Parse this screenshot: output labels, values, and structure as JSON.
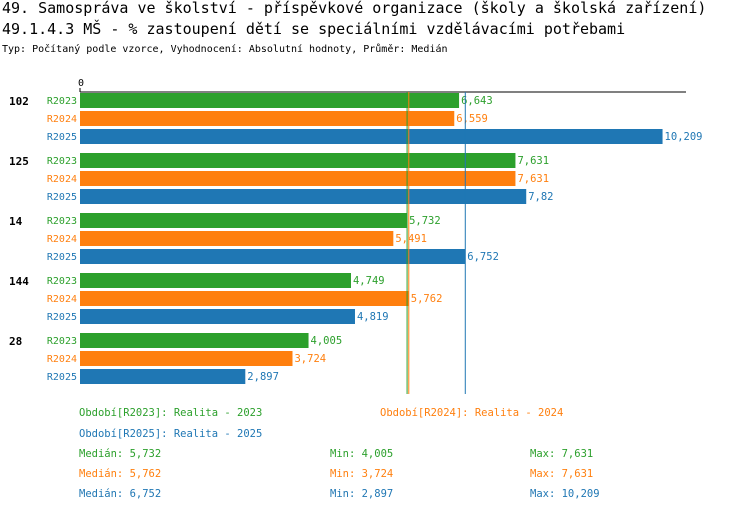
{
  "header": {
    "title": "49. Samospráva ve školství - příspěvkové organizace (školy a školská zařízení)",
    "subtitle": "49.1.4.3 MŠ - % zastoupení dětí se speciálními vzdělávacími potřebami",
    "meta": "Typ: Počítaný podle vzorce, Vyhodnocení: Absolutní hodnoty, Průměr: Medián"
  },
  "chart_data": {
    "type": "bar",
    "orientation": "horizontal",
    "x_axis_start_label": "0",
    "xlim": [
      0,
      10.62
    ],
    "categories": [
      "102",
      "125",
      "14",
      "144",
      "28"
    ],
    "series": [
      {
        "name": "R2023",
        "color": "#2ca02c",
        "values": [
          6.643,
          7.631,
          5.732,
          4.749,
          4.005
        ],
        "labels": [
          "6,643",
          "7,631",
          "5,732",
          "4,749",
          "4,005"
        ]
      },
      {
        "name": "R2024",
        "color": "#ff7f0e",
        "values": [
          6.559,
          7.631,
          5.491,
          5.762,
          3.724
        ],
        "labels": [
          "6,559",
          "7,631",
          "5,491",
          "5,762",
          "3,724"
        ]
      },
      {
        "name": "R2025",
        "color": "#1f77b4",
        "values": [
          10.209,
          7.82,
          6.752,
          4.819,
          2.897
        ],
        "labels": [
          "10,209",
          "7,82",
          "6,752",
          "4,819",
          "2,897"
        ]
      }
    ],
    "median_lines": [
      {
        "series": "R2023",
        "value": 5.732,
        "color": "#2ca02c"
      },
      {
        "series": "R2024",
        "value": 5.762,
        "color": "#ff7f0e"
      },
      {
        "series": "R2025",
        "value": 6.752,
        "color": "#1f77b4"
      }
    ]
  },
  "legend": {
    "r2023": {
      "text": "Období[R2023]: Realita - 2023",
      "color": "#2ca02c"
    },
    "r2024": {
      "text": "Období[R2024]: Realita - 2024",
      "color": "#ff7f0e"
    },
    "r2025": {
      "text": "Období[R2025]: Realita - 2025",
      "color": "#1f77b4"
    }
  },
  "stats": [
    {
      "median": "Medián: 5,732",
      "min": "Min: 4,005",
      "max": "Max: 7,631",
      "color": "#2ca02c"
    },
    {
      "median": "Medián: 5,762",
      "min": "Min: 3,724",
      "max": "Max: 7,631",
      "color": "#ff7f0e"
    },
    {
      "median": "Medián: 6,752",
      "min": "Min: 2,897",
      "max": "Max: 10,209",
      "color": "#1f77b4"
    }
  ]
}
